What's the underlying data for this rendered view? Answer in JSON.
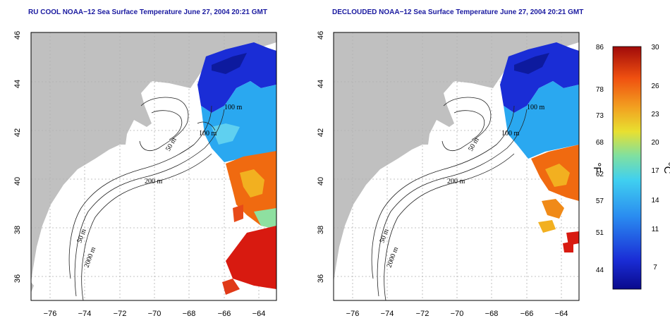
{
  "panels": [
    {
      "title": "RU COOL NOAA−12 Sea Surface Temperature June 27, 2004 20:21 GMT",
      "clouded": true
    },
    {
      "title": "DECLOUDED NOAA−12 Sea Surface Temperature June 27, 2004 20:21 GMT",
      "clouded": false
    }
  ],
  "axes": {
    "lon_ticks": [
      "−76",
      "−74",
      "−72",
      "−70",
      "−68",
      "−66",
      "−64"
    ],
    "lat_ticks": [
      "36",
      "38",
      "40",
      "42",
      "44",
      "46"
    ]
  },
  "contours": {
    "c50": "50 m",
    "c100": "100 m",
    "c200": "200 m",
    "c2000": "2000 m",
    "cnorth": "100 m"
  },
  "colorbar": {
    "fahrenheit_ticks": [
      "86",
      "78",
      "73",
      "68",
      "62",
      "57",
      "51",
      "44"
    ],
    "celsius_ticks": [
      "30",
      "26",
      "23",
      "20",
      "17",
      "14",
      "11",
      "7"
    ],
    "fahrenheit_unit": "°F",
    "celsius_unit": "°C"
  },
  "colors": {
    "land": "#c0c0c0",
    "grid": "#b0b0b0",
    "cold": "#1a2dd6",
    "mid": "#2aa8f0",
    "warm": "#f06a10",
    "hot": "#d81a10"
  }
}
